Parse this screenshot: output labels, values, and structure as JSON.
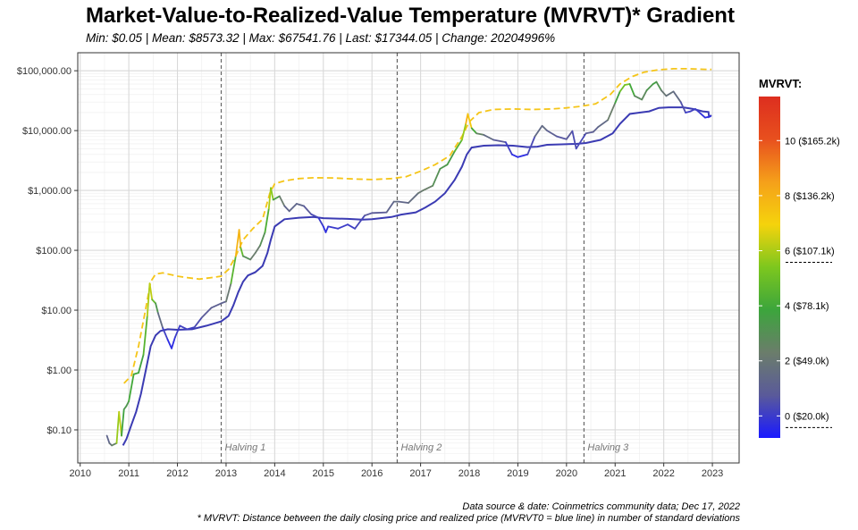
{
  "title": "Market-Value-to-Realized-Value Temperature (MVRVT)* Gradient",
  "subtitle": "Min: $0.05 | Mean: $8573.32 | Max: $67541.76 | Last: $17344.05 | Change: 20204996%",
  "caption": {
    "line1": "Data source & date: Coinmetrics community data; Dec 17, 2022",
    "line2": "* MVRVT: Distance between the daily closing price and realized price (MVRVT0 = blue line) in number of standard deviations"
  },
  "colors": {
    "realized_line": "#3b3bb3",
    "band_line": "#f5c518",
    "gradient_stops": [
      "#1a1aff",
      "#5a5a9a",
      "#6b7d6b",
      "#3ca53c",
      "#7dc71e",
      "#f5d30c",
      "#f5a01a",
      "#e8501e",
      "#dd2e1f"
    ]
  },
  "legend": {
    "title": "MVRVT:",
    "labels": [
      "10 ($165.2k)",
      "8 ($136.2k)",
      "6 ($107.1k)",
      "4 ($78.1k)",
      "2 ($49.0k)",
      "0 ($20.0k)"
    ],
    "values": [
      10,
      8,
      6,
      4,
      2,
      0
    ],
    "min": -0.8,
    "max": 11.6,
    "dashed_marks": [
      6,
      0
    ]
  },
  "chart_data": {
    "type": "line",
    "title": "Market-Value-to-Realized-Value Temperature (MVRVT)* Gradient",
    "xlabel": "",
    "ylabel": "",
    "y_scale": "log10",
    "xlim": [
      2009.95,
      2023.55
    ],
    "ylim": [
      0.028,
      200000
    ],
    "x_ticks": [
      2010,
      2011,
      2012,
      2013,
      2014,
      2015,
      2016,
      2017,
      2018,
      2019,
      2020,
      2021,
      2022,
      2023
    ],
    "x_tick_labels": [
      "2010",
      "2011",
      "2012",
      "2013",
      "2014",
      "2015",
      "2016",
      "2017",
      "2018",
      "2019",
      "2020",
      "2021",
      "2022",
      "2023"
    ],
    "y_ticks": [
      0.1,
      1,
      10,
      100,
      1000,
      10000,
      100000
    ],
    "y_tick_labels": [
      "$0.10",
      "$1.00",
      "$10.00",
      "$100.00",
      "$1,000.00",
      "$10,000.00",
      "$100,000.00"
    ],
    "halvings": [
      {
        "label": "Halving 1",
        "x": 2012.9
      },
      {
        "label": "Halving 2",
        "x": 2016.52
      },
      {
        "label": "Halving 3",
        "x": 2020.36
      }
    ],
    "series": [
      {
        "name": "Price (colored by MVRVT)",
        "points": [
          [
            2010.55,
            0.08,
            1.0
          ],
          [
            2010.6,
            0.06,
            1.5
          ],
          [
            2010.65,
            0.055,
            2.0
          ],
          [
            2010.75,
            0.06,
            3.0
          ],
          [
            2010.8,
            0.2,
            8.5
          ],
          [
            2010.85,
            0.08,
            4.0
          ],
          [
            2010.9,
            0.22,
            3.5
          ],
          [
            2010.95,
            0.25,
            3.0
          ],
          [
            2011.0,
            0.3,
            3.5
          ],
          [
            2011.1,
            0.85,
            4.5
          ],
          [
            2011.2,
            0.9,
            3.5
          ],
          [
            2011.3,
            1.8,
            4.0
          ],
          [
            2011.38,
            8.0,
            5.0
          ],
          [
            2011.43,
            28,
            7.0
          ],
          [
            2011.48,
            15,
            5.5
          ],
          [
            2011.55,
            13,
            4.0
          ],
          [
            2011.6,
            9,
            2.5
          ],
          [
            2011.7,
            5,
            0.5
          ],
          [
            2011.8,
            3.2,
            -0.3
          ],
          [
            2011.88,
            2.3,
            -0.5
          ],
          [
            2011.95,
            3.5,
            -0.2
          ],
          [
            2012.05,
            5.5,
            0.3
          ],
          [
            2012.2,
            4.8,
            0.0
          ],
          [
            2012.35,
            5.2,
            0.2
          ],
          [
            2012.5,
            7.5,
            0.6
          ],
          [
            2012.7,
            11,
            1.0
          ],
          [
            2012.9,
            13,
            1.0
          ],
          [
            2013.0,
            14,
            1.2
          ],
          [
            2013.1,
            28,
            3.0
          ],
          [
            2013.2,
            80,
            6.0
          ],
          [
            2013.27,
            220,
            9.8
          ],
          [
            2013.3,
            110,
            6.0
          ],
          [
            2013.35,
            80,
            3.5
          ],
          [
            2013.5,
            70,
            2.5
          ],
          [
            2013.6,
            90,
            2.0
          ],
          [
            2013.7,
            120,
            2.5
          ],
          [
            2013.8,
            200,
            3.5
          ],
          [
            2013.88,
            500,
            5.0
          ],
          [
            2013.92,
            1100,
            7.0
          ],
          [
            2013.97,
            700,
            4.0
          ],
          [
            2014.1,
            800,
            3.0
          ],
          [
            2014.2,
            550,
            1.5
          ],
          [
            2014.3,
            450,
            1.0
          ],
          [
            2014.45,
            600,
            1.5
          ],
          [
            2014.6,
            550,
            1.0
          ],
          [
            2014.75,
            400,
            0.5
          ],
          [
            2014.9,
            350,
            0.2
          ],
          [
            2015.0,
            250,
            -0.2
          ],
          [
            2015.05,
            200,
            -0.5
          ],
          [
            2015.1,
            250,
            0.0
          ],
          [
            2015.3,
            230,
            0.0
          ],
          [
            2015.5,
            270,
            0.1
          ],
          [
            2015.65,
            230,
            0.0
          ],
          [
            2015.85,
            380,
            0.6
          ],
          [
            2016.0,
            420,
            0.8
          ],
          [
            2016.3,
            430,
            0.8
          ],
          [
            2016.45,
            650,
            1.6
          ],
          [
            2016.55,
            650,
            1.4
          ],
          [
            2016.75,
            620,
            1.2
          ],
          [
            2016.95,
            900,
            2.0
          ],
          [
            2017.05,
            1000,
            2.2
          ],
          [
            2017.25,
            1200,
            2.5
          ],
          [
            2017.4,
            2300,
            3.5
          ],
          [
            2017.55,
            2700,
            3.0
          ],
          [
            2017.7,
            4500,
            4.0
          ],
          [
            2017.85,
            7000,
            5.0
          ],
          [
            2017.93,
            13000,
            6.5
          ],
          [
            2017.97,
            19000,
            9.5
          ],
          [
            2018.05,
            11000,
            5.0
          ],
          [
            2018.15,
            9000,
            3.0
          ],
          [
            2018.3,
            8500,
            2.0
          ],
          [
            2018.5,
            7000,
            1.0
          ],
          [
            2018.75,
            6400,
            0.5
          ],
          [
            2018.88,
            4000,
            -0.3
          ],
          [
            2019.0,
            3600,
            -0.5
          ],
          [
            2019.2,
            4000,
            -0.3
          ],
          [
            2019.35,
            8000,
            1.0
          ],
          [
            2019.5,
            12000,
            1.8
          ],
          [
            2019.6,
            10000,
            1.2
          ],
          [
            2019.8,
            8000,
            0.8
          ],
          [
            2020.0,
            7200,
            0.5
          ],
          [
            2020.12,
            9800,
            1.0
          ],
          [
            2020.2,
            5000,
            -0.2
          ],
          [
            2020.4,
            9000,
            0.8
          ],
          [
            2020.55,
            9500,
            1.0
          ],
          [
            2020.65,
            11500,
            1.2
          ],
          [
            2020.85,
            15000,
            1.6
          ],
          [
            2021.0,
            29000,
            3.0
          ],
          [
            2021.1,
            45000,
            4.5
          ],
          [
            2021.2,
            58000,
            5.5
          ],
          [
            2021.3,
            60000,
            5.0
          ],
          [
            2021.4,
            38000,
            3.0
          ],
          [
            2021.55,
            33000,
            2.5
          ],
          [
            2021.65,
            47000,
            3.0
          ],
          [
            2021.78,
            60000,
            3.5
          ],
          [
            2021.85,
            65000,
            3.8
          ],
          [
            2021.95,
            47000,
            2.5
          ],
          [
            2022.05,
            38000,
            1.5
          ],
          [
            2022.2,
            45000,
            2.0
          ],
          [
            2022.35,
            30000,
            1.0
          ],
          [
            2022.45,
            20000,
            0.0
          ],
          [
            2022.55,
            21000,
            0.1
          ],
          [
            2022.65,
            23000,
            0.2
          ],
          [
            2022.75,
            19500,
            -0.1
          ],
          [
            2022.85,
            16500,
            -0.4
          ],
          [
            2022.96,
            17300,
            -0.3
          ]
        ]
      },
      {
        "name": "Realized price (MVRVT0)",
        "points": [
          [
            2010.88,
            0.055
          ],
          [
            2010.95,
            0.07
          ],
          [
            2011.05,
            0.12
          ],
          [
            2011.15,
            0.2
          ],
          [
            2011.25,
            0.4
          ],
          [
            2011.35,
            1.0
          ],
          [
            2011.45,
            2.5
          ],
          [
            2011.55,
            3.8
          ],
          [
            2011.65,
            4.5
          ],
          [
            2011.8,
            4.8
          ],
          [
            2012.0,
            4.7
          ],
          [
            2012.3,
            4.8
          ],
          [
            2012.6,
            5.5
          ],
          [
            2012.9,
            6.5
          ],
          [
            2013.05,
            8.0
          ],
          [
            2013.15,
            12
          ],
          [
            2013.25,
            20
          ],
          [
            2013.35,
            30
          ],
          [
            2013.45,
            38
          ],
          [
            2013.6,
            43
          ],
          [
            2013.75,
            55
          ],
          [
            2013.85,
            90
          ],
          [
            2013.92,
            150
          ],
          [
            2014.0,
            250
          ],
          [
            2014.2,
            330
          ],
          [
            2014.5,
            350
          ],
          [
            2014.8,
            360
          ],
          [
            2015.0,
            345
          ],
          [
            2015.5,
            335
          ],
          [
            2015.8,
            325
          ],
          [
            2016.0,
            330
          ],
          [
            2016.4,
            360
          ],
          [
            2016.6,
            395
          ],
          [
            2016.9,
            430
          ],
          [
            2017.1,
            520
          ],
          [
            2017.3,
            650
          ],
          [
            2017.5,
            900
          ],
          [
            2017.7,
            1500
          ],
          [
            2017.85,
            2500
          ],
          [
            2017.95,
            4000
          ],
          [
            2018.05,
            5200
          ],
          [
            2018.3,
            5600
          ],
          [
            2018.6,
            5700
          ],
          [
            2018.9,
            5600
          ],
          [
            2019.2,
            5300
          ],
          [
            2019.4,
            5400
          ],
          [
            2019.6,
            5800
          ],
          [
            2019.9,
            5900
          ],
          [
            2020.2,
            6000
          ],
          [
            2020.4,
            6200
          ],
          [
            2020.7,
            7000
          ],
          [
            2020.95,
            9000
          ],
          [
            2021.1,
            13000
          ],
          [
            2021.3,
            19000
          ],
          [
            2021.5,
            20000
          ],
          [
            2021.7,
            21000
          ],
          [
            2021.9,
            24000
          ],
          [
            2022.1,
            24500
          ],
          [
            2022.4,
            24500
          ],
          [
            2022.6,
            23000
          ],
          [
            2022.8,
            21000
          ],
          [
            2022.92,
            20500
          ],
          [
            2022.93,
            17000
          ],
          [
            2022.98,
            18000
          ]
        ]
      },
      {
        "name": "MVRVT 6 band",
        "points": [
          [
            2010.9,
            0.6
          ],
          [
            2011.05,
            0.8
          ],
          [
            2011.2,
            2.5
          ],
          [
            2011.32,
            8
          ],
          [
            2011.45,
            30
          ],
          [
            2011.55,
            40
          ],
          [
            2011.7,
            42
          ],
          [
            2012.0,
            37
          ],
          [
            2012.2,
            35
          ],
          [
            2012.45,
            33
          ],
          [
            2012.7,
            35
          ],
          [
            2012.9,
            37
          ],
          [
            2013.05,
            48
          ],
          [
            2013.2,
            80
          ],
          [
            2013.35,
            150
          ],
          [
            2013.55,
            230
          ],
          [
            2013.75,
            330
          ],
          [
            2013.9,
            900
          ],
          [
            2014.0,
            1300
          ],
          [
            2014.2,
            1450
          ],
          [
            2014.5,
            1580
          ],
          [
            2014.8,
            1630
          ],
          [
            2015.2,
            1620
          ],
          [
            2015.6,
            1560
          ],
          [
            2016.0,
            1520
          ],
          [
            2016.4,
            1580
          ],
          [
            2016.7,
            1700
          ],
          [
            2017.0,
            2100
          ],
          [
            2017.3,
            2700
          ],
          [
            2017.6,
            3800
          ],
          [
            2017.85,
            8000
          ],
          [
            2018.0,
            14000
          ],
          [
            2018.2,
            20000
          ],
          [
            2018.5,
            22500
          ],
          [
            2018.9,
            23000
          ],
          [
            2019.3,
            22500
          ],
          [
            2019.7,
            23000
          ],
          [
            2020.0,
            24000
          ],
          [
            2020.3,
            25500
          ],
          [
            2020.6,
            28000
          ],
          [
            2020.9,
            40000
          ],
          [
            2021.1,
            60000
          ],
          [
            2021.35,
            80000
          ],
          [
            2021.6,
            95000
          ],
          [
            2021.9,
            104000
          ],
          [
            2022.2,
            108000
          ],
          [
            2022.5,
            108000
          ],
          [
            2022.8,
            106000
          ],
          [
            2022.98,
            105000
          ]
        ]
      }
    ]
  }
}
